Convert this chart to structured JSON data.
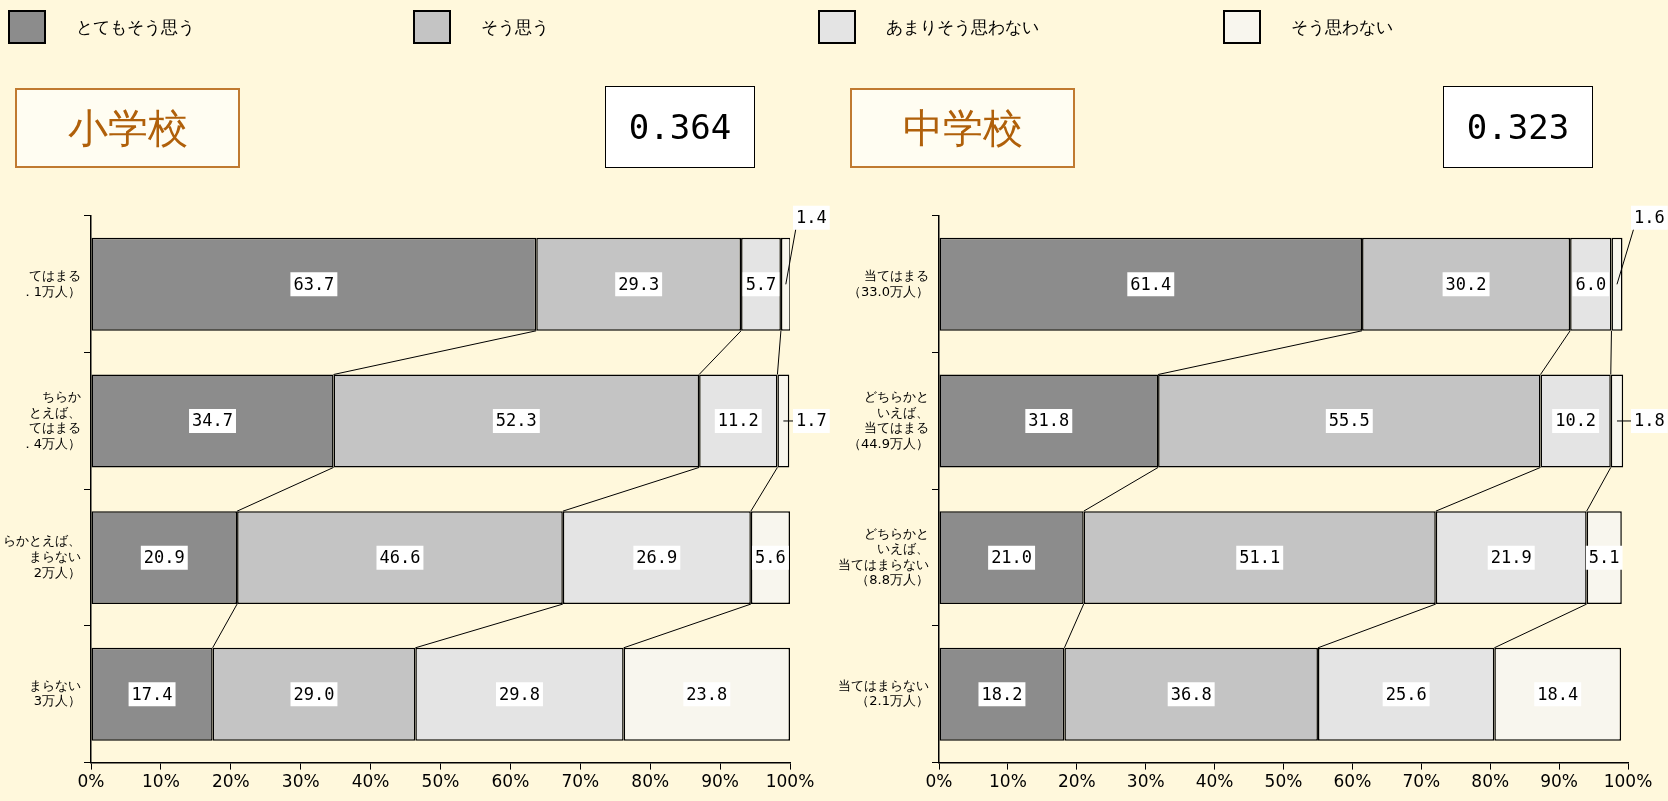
{
  "chart_data": [
    {
      "type": "bar",
      "orientation": "horizontal",
      "stacked": true,
      "title": "小学校",
      "annotations": [
        "0.364"
      ],
      "legend": "top",
      "grid": false,
      "categories": [
        "てはまる．1万人）",
        "ちらかとえば、てはまる．4万人）",
        "らかとえば、まらない2万人）",
        "まらない3万人）"
      ],
      "xlim": [
        0,
        100
      ],
      "xticks": [
        {
          "value": 0,
          "label": "0%"
        },
        {
          "value": 10,
          "label": "10%"
        },
        {
          "value": 20,
          "label": "20%"
        },
        {
          "value": 30,
          "label": "30%"
        },
        {
          "value": 40,
          "label": "40%"
        },
        {
          "value": 50,
          "label": "50%"
        },
        {
          "value": 60,
          "label": "60%"
        },
        {
          "value": 70,
          "label": "70%"
        },
        {
          "value": 80,
          "label": "80%"
        },
        {
          "value": 90,
          "label": "90%"
        },
        {
          "value": 100,
          "label": "100%"
        }
      ],
      "series": [
        {
          "name": "とてもそう思う",
          "color": "#8c8c8c",
          "values": [
            63.7,
            34.7,
            20.9,
            17.4
          ],
          "value_labels": [
            "63.7",
            "34.7",
            "20.9",
            "17.4"
          ]
        },
        {
          "name": "そう思う",
          "color": "#c4c4c4",
          "values": [
            29.3,
            52.3,
            46.6,
            29.0
          ],
          "value_labels": [
            "29.3",
            "52.3",
            "46.6",
            "29.0"
          ]
        },
        {
          "name": "あまりそう思わない",
          "color": "#e4e4e4",
          "values": [
            5.7,
            11.2,
            26.9,
            29.8
          ],
          "value_labels": [
            "5.7",
            "11.2",
            "26.9",
            "29.8"
          ]
        },
        {
          "name": "そう思わない",
          "color": "#f8f6ee",
          "values": [
            1.4,
            1.7,
            5.6,
            23.8
          ],
          "value_labels": [
            "1.4",
            "1.7",
            "5.6",
            "23.8"
          ]
        }
      ]
    },
    {
      "type": "bar",
      "orientation": "horizontal",
      "stacked": true,
      "title": "中学校",
      "annotations": [
        "0.323"
      ],
      "grid": false,
      "categories": [
        "当てはまる（33.0万人）",
        "どちらかといえば、当てはまる（44.9万人）",
        "どちらかといえば、当てはまらない（8.8万人）",
        "当てはまらない（2.1万人）"
      ],
      "xlim": [
        0,
        100
      ],
      "xticks": [
        {
          "value": 0,
          "label": "0%"
        },
        {
          "value": 10,
          "label": "10%"
        },
        {
          "value": 20,
          "label": "20%"
        },
        {
          "value": 30,
          "label": "30%"
        },
        {
          "value": 40,
          "label": "40%"
        },
        {
          "value": 50,
          "label": "50%"
        },
        {
          "value": 60,
          "label": "60%"
        },
        {
          "value": 70,
          "label": "70%"
        },
        {
          "value": 80,
          "label": "80%"
        },
        {
          "value": 90,
          "label": "90%"
        },
        {
          "value": 100,
          "label": "100%"
        }
      ],
      "series": [
        {
          "color": "#8c8c8c",
          "values": [
            61.4,
            31.8,
            21.0,
            18.2
          ],
          "value_labels": [
            "61.4",
            "31.8",
            "21.0",
            "18.2"
          ]
        },
        {
          "color": "#c4c4c4",
          "values": [
            30.2,
            55.5,
            51.1,
            36.8
          ],
          "value_labels": [
            "30.2",
            "55.5",
            "51.1",
            "36.8"
          ]
        },
        {
          "color": "#e4e4e4",
          "values": [
            6.0,
            10.2,
            21.9,
            25.6
          ],
          "value_labels": [
            "6.0",
            "10.2",
            "21.9",
            "25.6"
          ]
        },
        {
          "color": "#f8f6ee",
          "values": [
            1.6,
            1.8,
            5.1,
            18.4
          ],
          "value_labels": [
            "1.6",
            "1.8",
            "5.1",
            "18.4"
          ]
        }
      ]
    }
  ]
}
